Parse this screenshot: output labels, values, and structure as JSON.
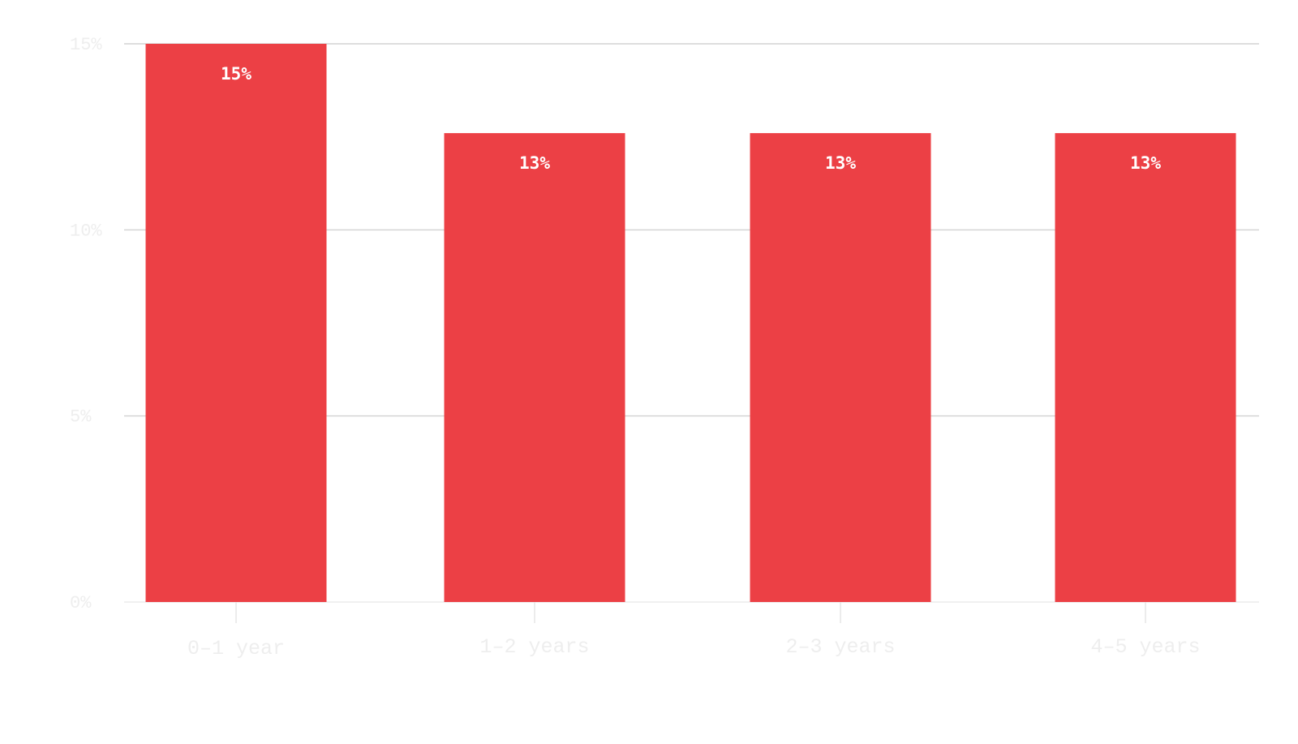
{
  "chart_data": {
    "type": "bar",
    "categories": [
      "0–1 year",
      "1–2 years",
      "2–3 years",
      "4–5 years"
    ],
    "values": [
      15,
      12.6,
      12.6,
      12.6
    ],
    "data_labels": [
      "15%",
      "13%",
      "13%",
      "13%"
    ],
    "title": "",
    "xlabel": "",
    "ylabel": "",
    "ylim": [
      0,
      15
    ],
    "y_ticks": [
      0,
      5,
      10,
      15
    ],
    "y_tick_labels": [
      "0%",
      "5%",
      "10%",
      "15%"
    ],
    "grid": true,
    "legend": "none",
    "colors": {
      "bar": "#ec4045",
      "grid": "#d4d4d4",
      "axis_text": "#eeeeee",
      "data_label": "#ffffff"
    }
  }
}
